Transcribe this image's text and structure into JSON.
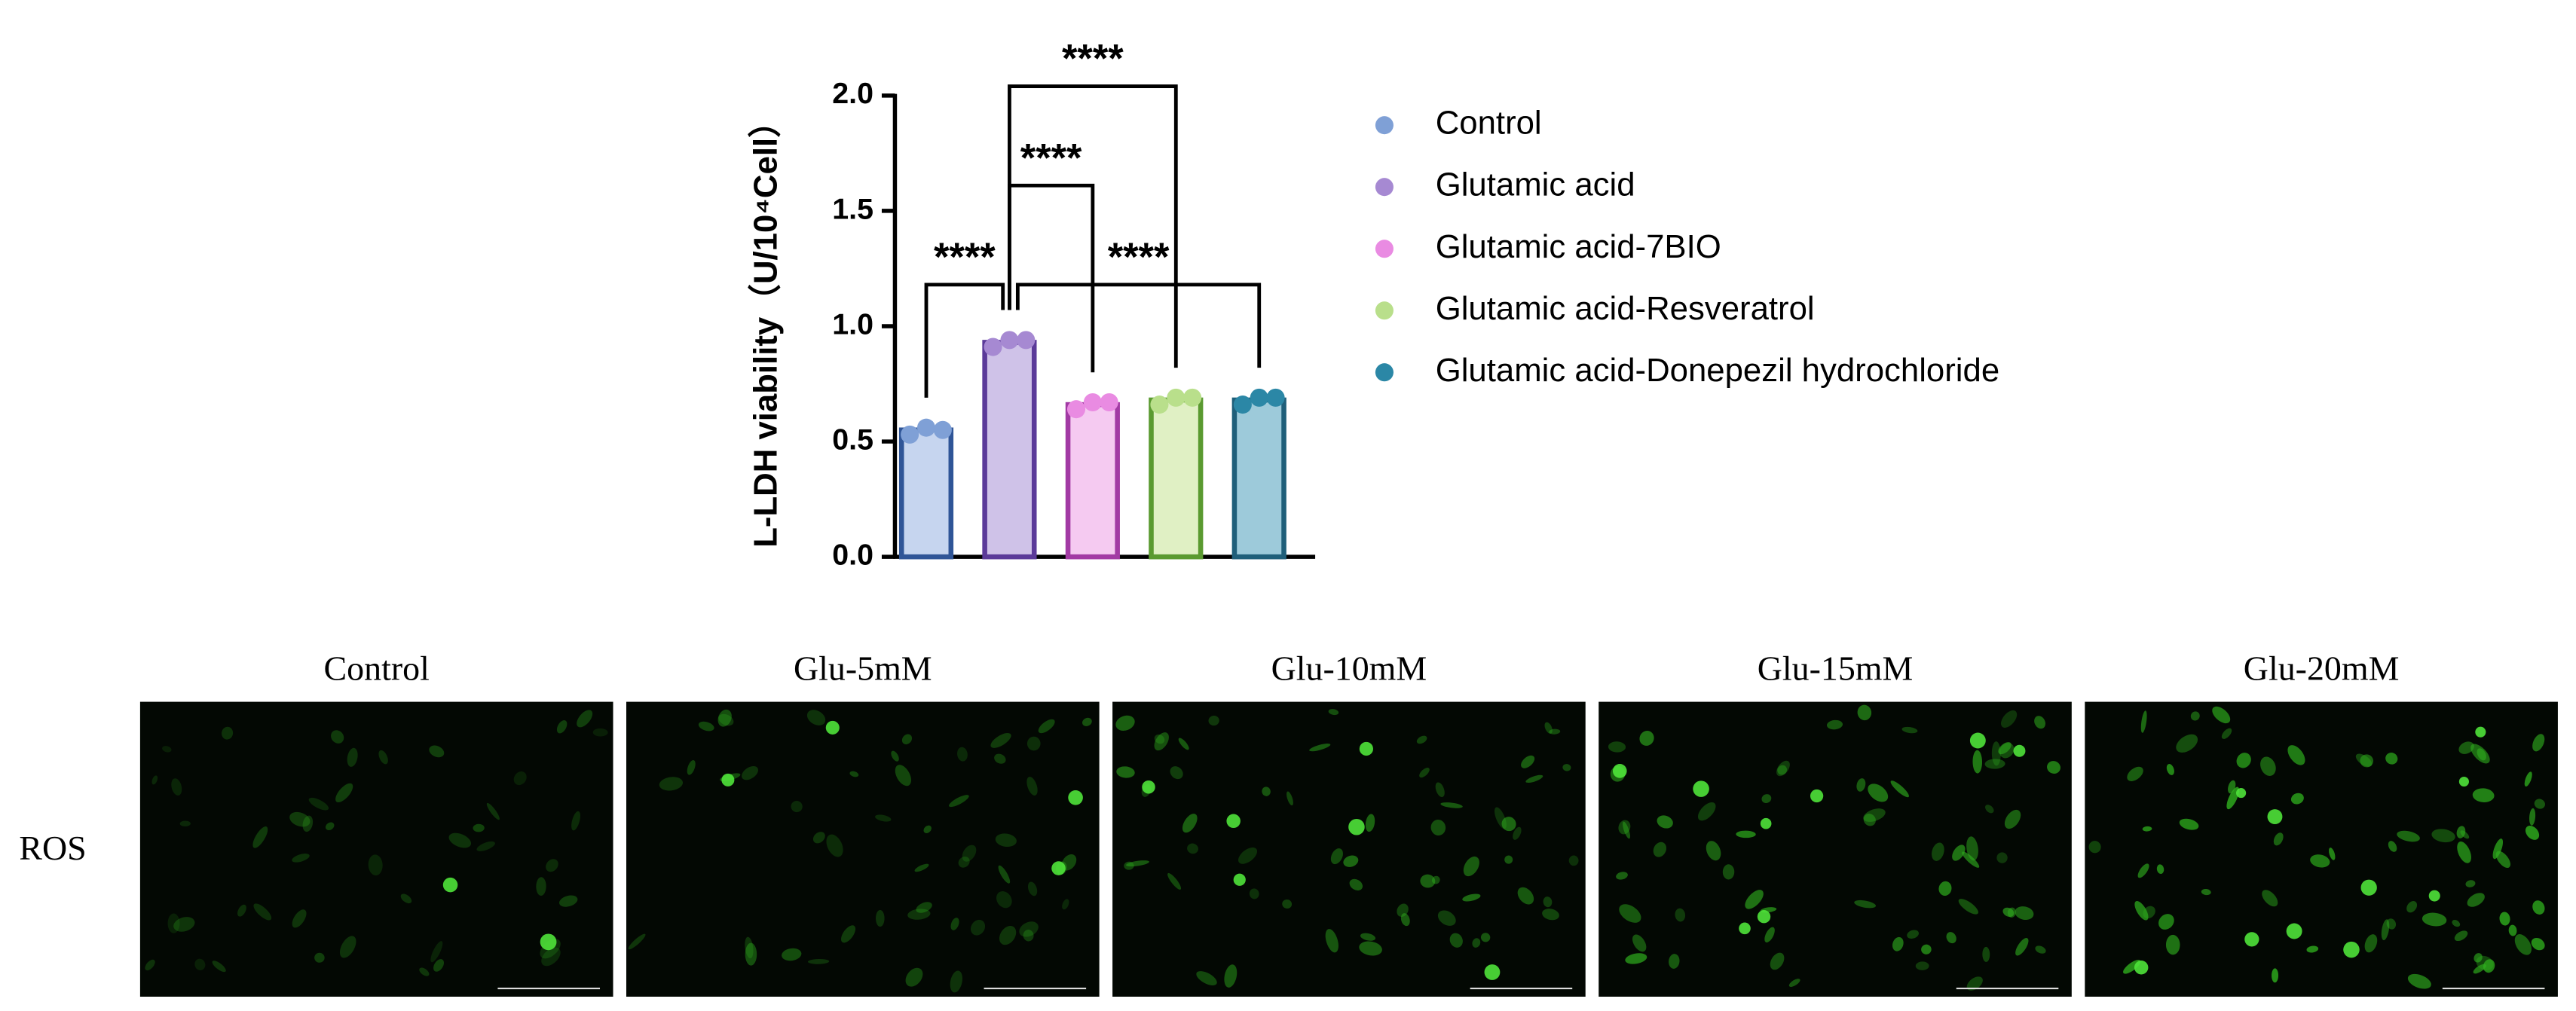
{
  "chart_data": {
    "type": "bar",
    "y_label": "L-LDH viability（U/10⁴Cell）",
    "categories": [
      "Control",
      "Glutamic acid",
      "Glutamic acid-7BIO",
      "Glutamic acid-Resveratrol",
      "Glutamic acid-Donepezil hydrochloride"
    ],
    "values": [
      0.55,
      0.93,
      0.66,
      0.68,
      0.68
    ],
    "points": [
      [
        0.53,
        0.56,
        0.55
      ],
      [
        0.91,
        0.94,
        0.94
      ],
      [
        0.64,
        0.67,
        0.67
      ],
      [
        0.66,
        0.69,
        0.69
      ],
      [
        0.66,
        0.69,
        0.69
      ]
    ],
    "colors": [
      "#7fa0d6",
      "#a689d2",
      "#e98be2",
      "#b9df8b",
      "#2b87a6"
    ],
    "bar_fills": [
      "#c6d5ef",
      "#cfc2e8",
      "#f5caf1",
      "#e0f0c4",
      "#9dcada"
    ],
    "bar_edges": [
      "#2f5597",
      "#5b3a99",
      "#a23aa4",
      "#5a9a30",
      "#1f5f7a"
    ],
    "ylim": [
      0,
      2
    ],
    "yticks": [
      {
        "value": 0,
        "label": "0.0"
      },
      {
        "value": 0.5,
        "label": "0.5"
      },
      {
        "value": 1,
        "label": "1.0"
      },
      {
        "value": 1.5,
        "label": "1.5"
      },
      {
        "value": 2,
        "label": "2.0"
      }
    ],
    "comparisons": [
      {
        "groups": [
          "Control",
          "Glutamic acid"
        ],
        "label": "****"
      },
      {
        "groups": [
          "Glutamic acid",
          "Glutamic acid-7BIO"
        ],
        "label": "****"
      },
      {
        "groups": [
          "Glutamic acid",
          "Glutamic acid-Resveratrol"
        ],
        "label": "****"
      },
      {
        "groups": [
          "Glutamic acid",
          "Glutamic acid-Donepezil hydrochloride"
        ],
        "label": "****"
      }
    ]
  },
  "image_panel": {
    "row_label": "ROS",
    "columns": [
      "Control",
      "Glu-5mM",
      "Glu-10mM",
      "Glu-15mM",
      "Glu-20mM"
    ]
  }
}
